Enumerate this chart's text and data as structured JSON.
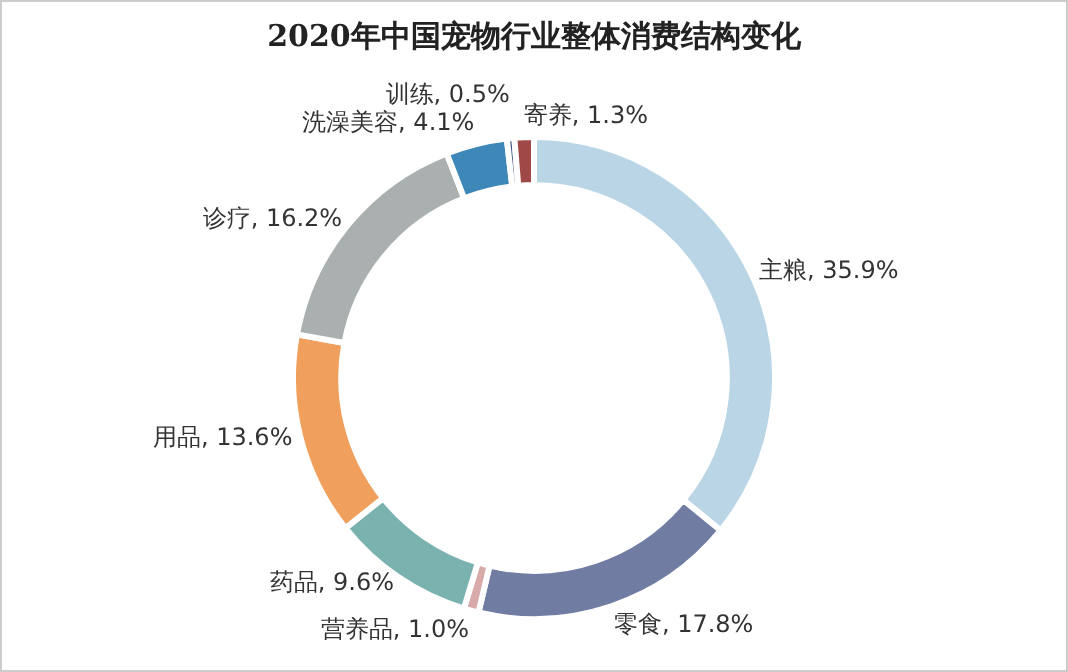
{
  "chart_data": {
    "type": "donut",
    "title": "2020年中国宠物行业整体消费结构变化",
    "categories": [
      "主粮",
      "零食",
      "营养品",
      "药品",
      "用品",
      "诊疗",
      "洗澡美容",
      "训练",
      "寄养"
    ],
    "values": [
      35.9,
      17.8,
      1.0,
      9.6,
      13.6,
      16.2,
      4.1,
      0.5,
      1.3
    ],
    "value_labels": [
      "35.9%",
      "17.8%",
      "1.0%",
      "9.6%",
      "13.6%",
      "16.2%",
      "4.1%",
      "0.5%",
      "1.3%"
    ],
    "colors": [
      "#b9d5e6",
      "#717ca3",
      "#d9aaaa",
      "#7ab2b0",
      "#f0a05c",
      "#aab0b0",
      "#3d88b8",
      "#4a5d80",
      "#a04848"
    ],
    "legend": false
  }
}
